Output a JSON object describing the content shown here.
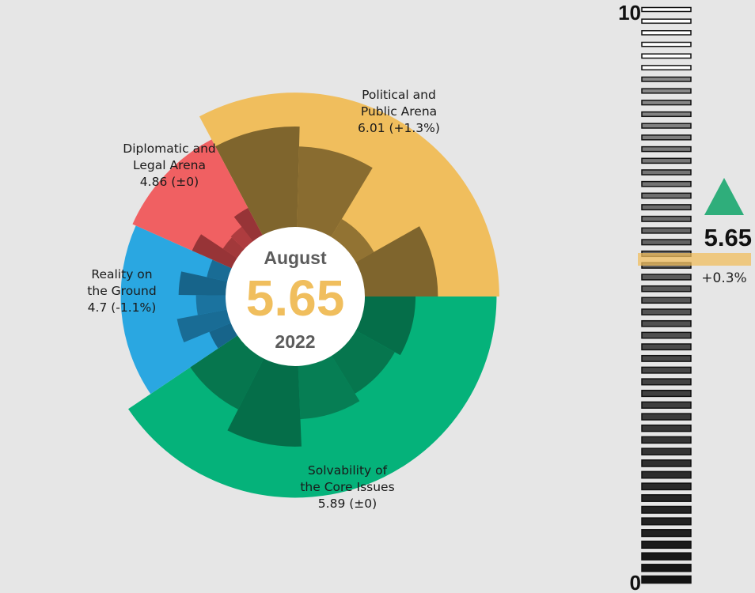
{
  "chart_data": {
    "type": "radial-bar",
    "center": {
      "month": "August",
      "score": "5.65",
      "year": "2022"
    },
    "scale_max": 10,
    "arenas": [
      {
        "name": "Political and Public Arena",
        "label_lines": [
          "Political and",
          "Public Arena",
          "6.01 (+1.3%)"
        ],
        "value": 6.01,
        "change": "+1.3%",
        "color": "#f0be5d",
        "inner_color": "#8a6d30",
        "start_deg": 332,
        "end_deg": 450,
        "sub_values": [
          8.2,
          6.6,
          1.8,
          6.0
        ]
      },
      {
        "name": "Solvability of the Core Issues",
        "label_lines": [
          "Solvability of",
          "the Core Issues",
          "5.89 (±0)"
        ],
        "value": 5.89,
        "change": "±0",
        "color": "#05b27a",
        "inner_color": "#067a50",
        "start_deg": 90,
        "end_deg": 236,
        "sub_values": [
          4.2,
          3.7,
          4.4,
          6.6,
          4.7
        ]
      },
      {
        "name": "Reality on the Ground",
        "label_lines": [
          "Reality on",
          "the Ground",
          "4.7 (-1.1%)"
        ],
        "value": 4.7,
        "change": "-1.1%",
        "color": "#2aa7e1",
        "inner_color": "#1a6f99",
        "start_deg": 236,
        "end_deg": 294,
        "sub_values": [
          2.0,
          4.2,
          2.5,
          3.9,
          1.8
        ]
      },
      {
        "name": "Diplomatic and Legal Arena",
        "label_lines": [
          "Diplomatic and",
          "Legal Arena",
          "4.86 (±0)"
        ],
        "value": 4.86,
        "change": "±0",
        "color": "#f06062",
        "inner_color": "#a83a3c",
        "start_deg": 294,
        "end_deg": 332,
        "sub_values": [
          3.6,
          1.5,
          1.6,
          2.6
        ]
      }
    ],
    "overall": {
      "value": 5.65,
      "change": "+0.3%",
      "direction": "up",
      "arrow_color": "#2fae7b",
      "marker_color": "#f0be5d"
    },
    "scale_labels": [
      "10",
      "0"
    ]
  }
}
